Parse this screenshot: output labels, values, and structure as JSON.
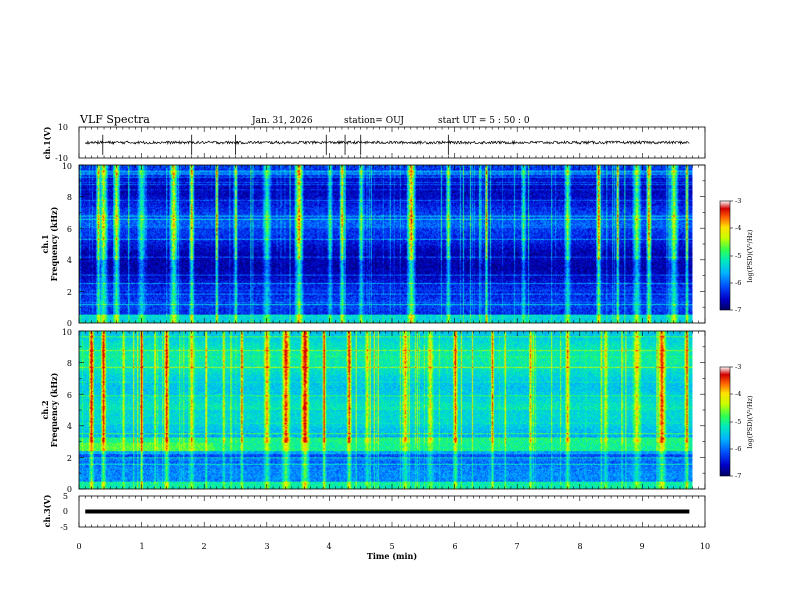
{
  "header": {
    "title": "VLF Spectra",
    "date": "Jan. 31, 2026",
    "station": "station= OUJ",
    "start_time": "start  UT =   5 : 50 : 0"
  },
  "chart_data": [
    {
      "type": "line",
      "name": "ch1-waveform",
      "ylabel": "ch.1(V)",
      "ylim": [
        -10,
        10
      ],
      "yticks": [
        "10",
        "-10"
      ],
      "xlim": [
        0,
        10
      ],
      "baseline": 0,
      "description_values": {
        "typical_level_V": 0.0,
        "spikes_at_min": [
          0.38,
          1.8,
          2.5,
          3.95,
          4.25,
          4.5,
          5.9
        ]
      }
    },
    {
      "type": "heatmap",
      "name": "ch1-spectrogram",
      "ylabel": "ch.1\nFrequency (kHz)",
      "ylabel_lines": [
        "ch.1",
        "Frequency (kHz)"
      ],
      "ylim": [
        0,
        10
      ],
      "yticks": [
        "0",
        "2",
        "4",
        "6",
        "8",
        "10"
      ],
      "xlim": [
        0,
        9.8
      ],
      "colorbar": {
        "label": "log(PSD)(V²/Hz)",
        "ticks": [
          "-3",
          "-4",
          "-5",
          "-6",
          "-7"
        ],
        "range": [
          -7,
          -3
        ]
      },
      "bright_bursts_min": [
        0.3,
        0.38,
        0.6,
        1.0,
        1.5,
        1.8,
        2.2,
        2.5,
        3.0,
        3.5,
        4.0,
        4.2,
        4.5,
        5.3,
        5.9,
        6.5,
        7.1,
        7.8,
        8.3,
        8.6,
        8.9,
        9.1,
        9.5,
        9.7
      ]
    },
    {
      "type": "heatmap",
      "name": "ch2-spectrogram",
      "ylabel": "ch.2\nFrequency (kHz)",
      "ylabel_lines": [
        "ch.2",
        "Frequency (kHz)"
      ],
      "ylim": [
        0,
        10
      ],
      "yticks": [
        "0",
        "2",
        "4",
        "6",
        "8",
        "10"
      ],
      "xlim": [
        0,
        9.8
      ],
      "colorbar": {
        "label": "log(PSD)(V²/Hz)",
        "ticks": [
          "-3",
          "-4",
          "-5",
          "-6",
          "-7"
        ],
        "range": [
          -7,
          -3
        ]
      },
      "bright_band_khz": [
        2.5,
        3.2
      ],
      "bright_bursts_min": [
        0.2,
        0.38,
        0.7,
        1.0,
        1.4,
        1.8,
        2.3,
        2.6,
        3.0,
        3.3,
        3.6,
        3.9,
        4.3,
        4.6,
        5.2,
        5.6,
        6.0,
        6.6,
        7.2,
        7.8,
        8.4,
        8.9,
        9.3,
        9.7
      ]
    },
    {
      "type": "line",
      "name": "ch3-waveform",
      "ylabel": "ch.3(V)",
      "ylim": [
        -5,
        5
      ],
      "yticks": [
        "5",
        "0",
        "-5"
      ],
      "xlim": [
        0,
        10
      ],
      "baseline": 0
    }
  ],
  "x_axis": {
    "label": "Time (min)",
    "ticks": [
      "0",
      "1",
      "2",
      "3",
      "4",
      "5",
      "6",
      "7",
      "8",
      "9",
      "10"
    ]
  },
  "colors": {
    "axis": "#000000",
    "background": "#ffffff",
    "colormap": [
      "#000060",
      "#0000c8",
      "#0050ff",
      "#00b4ff",
      "#00e8c0",
      "#30ff50",
      "#c8ff00",
      "#ffe000",
      "#ff6000",
      "#d00000",
      "#ffffff"
    ]
  }
}
